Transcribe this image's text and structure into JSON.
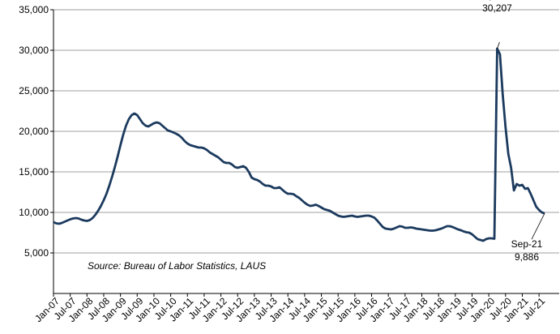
{
  "chart_data": {
    "type": "line",
    "categories": [
      "Jan-07",
      null,
      null,
      null,
      null,
      null,
      "Jul-07",
      null,
      null,
      null,
      null,
      null,
      "Jan-08",
      null,
      null,
      null,
      null,
      null,
      "Jul-08",
      null,
      null,
      null,
      null,
      null,
      "Jan-09",
      null,
      null,
      null,
      null,
      null,
      "Jul-09",
      null,
      null,
      null,
      null,
      null,
      "Jan-10",
      null,
      null,
      null,
      null,
      null,
      "Jul-10",
      null,
      null,
      null,
      null,
      null,
      "Jan-11",
      null,
      null,
      null,
      null,
      null,
      "Jul-11",
      null,
      null,
      null,
      null,
      null,
      "Jan-12",
      null,
      null,
      null,
      null,
      null,
      "Jul-12",
      null,
      null,
      null,
      null,
      null,
      "Jan-13",
      null,
      null,
      null,
      null,
      null,
      "Jul-13",
      null,
      null,
      null,
      null,
      null,
      "Jan-14",
      null,
      null,
      null,
      null,
      null,
      "Jul-14",
      null,
      null,
      null,
      null,
      null,
      "Jan-15",
      null,
      null,
      null,
      null,
      null,
      "Jul-15",
      null,
      null,
      null,
      null,
      null,
      "Jan-16",
      null,
      null,
      null,
      null,
      null,
      "Jul-16",
      null,
      null,
      null,
      null,
      null,
      "Jan-17",
      null,
      null,
      null,
      null,
      null,
      "Jul-17",
      null,
      null,
      null,
      null,
      null,
      "Jan-18",
      null,
      null,
      null,
      null,
      null,
      "Jul-18",
      null,
      null,
      null,
      null,
      null,
      "Jan-19",
      null,
      null,
      null,
      null,
      null,
      "Jul-19",
      null,
      null,
      null,
      null,
      null,
      "Jan-20",
      null,
      null,
      null,
      null,
      null,
      "Jul-20",
      null,
      null,
      null,
      null,
      null,
      "Jan-21",
      null,
      null,
      null,
      null,
      null,
      "Jul-21",
      null,
      null
    ],
    "values": [
      8800,
      8650,
      8600,
      8700,
      8850,
      9000,
      9150,
      9250,
      9300,
      9250,
      9100,
      9000,
      8950,
      9050,
      9300,
      9700,
      10200,
      10800,
      11500,
      12300,
      13300,
      14400,
      15600,
      16900,
      18300,
      19600,
      20700,
      21500,
      22000,
      22200,
      22000,
      21500,
      21000,
      20700,
      20600,
      20800,
      21000,
      21100,
      21000,
      20700,
      20400,
      20100,
      20000,
      19850,
      19700,
      19500,
      19200,
      18800,
      18500,
      18300,
      18200,
      18100,
      18000,
      18000,
      17900,
      17700,
      17400,
      17200,
      17000,
      16800,
      16500,
      16200,
      16100,
      16100,
      15900,
      15600,
      15500,
      15600,
      15700,
      15500,
      15000,
      14300,
      14100,
      14000,
      13800,
      13500,
      13300,
      13300,
      13200,
      13000,
      13000,
      13100,
      12800,
      12500,
      12300,
      12300,
      12250,
      12000,
      11800,
      11500,
      11200,
      10950,
      10800,
      10850,
      10950,
      10800,
      10600,
      10400,
      10300,
      10200,
      10000,
      9800,
      9600,
      9500,
      9450,
      9500,
      9550,
      9600,
      9500,
      9450,
      9500,
      9550,
      9600,
      9600,
      9500,
      9350,
      9000,
      8600,
      8200,
      8000,
      7950,
      7900,
      8000,
      8150,
      8300,
      8250,
      8100,
      8100,
      8150,
      8100,
      8000,
      7950,
      7900,
      7850,
      7800,
      7750,
      7750,
      7800,
      7900,
      8000,
      8150,
      8300,
      8300,
      8200,
      8050,
      7900,
      7800,
      7650,
      7550,
      7500,
      7300,
      7000,
      6700,
      6600,
      6500,
      6700,
      6800,
      6800,
      6750,
      30207,
      29500,
      24500,
      20500,
      17200,
      15500,
      12700,
      13500,
      13300,
      13400,
      12900,
      13000,
      12300,
      11500,
      10700,
      10300,
      10000,
      9886
    ],
    "color": "#1b3a5e",
    "ylim": [
      0,
      35000
    ],
    "yticks": [
      {
        "value": 5000,
        "label": "5,000"
      },
      {
        "value": 10000,
        "label": "10,000"
      },
      {
        "value": 15000,
        "label": "15,000"
      },
      {
        "value": 20000,
        "label": "20,000"
      },
      {
        "value": 25000,
        "label": "25,000"
      },
      {
        "value": 30000,
        "label": "30,000"
      },
      {
        "value": 35000,
        "label": "35,000"
      }
    ],
    "grid": true,
    "annotations": [
      {
        "x": "Apr-20",
        "value": 30207,
        "label": "30,207"
      },
      {
        "x": "Sep-21",
        "value": 9886,
        "label": "9,886"
      }
    ],
    "source": "Source: Bureau of Labor Statistics, LAUS"
  }
}
